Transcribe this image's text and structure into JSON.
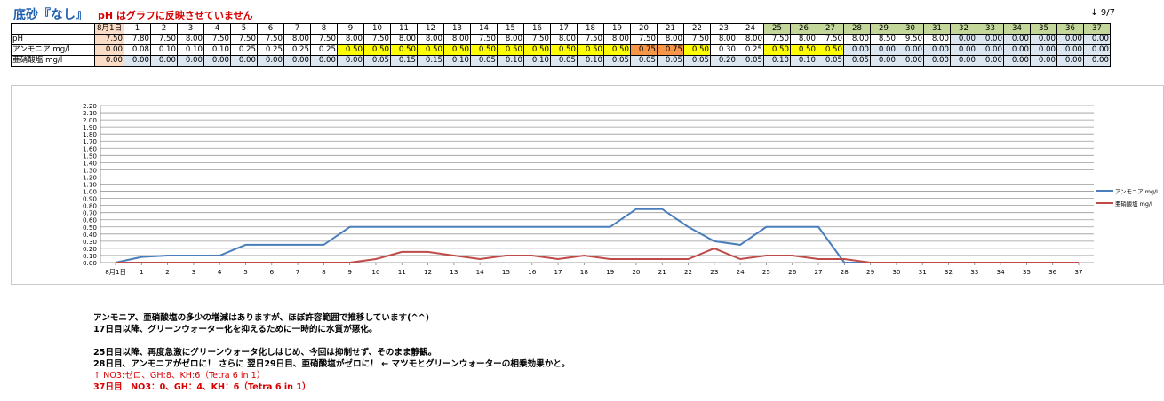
{
  "header": {
    "title": "底砂『なし』",
    "subtitle": "pH はグラフに反映させていません",
    "date": "↓ 9/7"
  },
  "table": {
    "columns": [
      "8月1日",
      "1",
      "2",
      "3",
      "4",
      "5",
      "6",
      "7",
      "8",
      "9",
      "10",
      "11",
      "12",
      "13",
      "14",
      "15",
      "16",
      "17",
      "18",
      "19",
      "20",
      "21",
      "22",
      "23",
      "24",
      "25",
      "26",
      "27",
      "28",
      "29",
      "30",
      "31",
      "32",
      "33",
      "34",
      "35",
      "36",
      "37"
    ],
    "rows": [
      {
        "label": "pH",
        "values": [
          "7.50",
          "7.80",
          "7.50",
          "8.00",
          "7.50",
          "7.50",
          "7.50",
          "8.00",
          "7.50",
          "8.00",
          "7.50",
          "8.00",
          "8.00",
          "8.00",
          "7.50",
          "8.00",
          "7.50",
          "8.00",
          "7.50",
          "8.00",
          "7.50",
          "8.00",
          "7.50",
          "8.00",
          "8.00",
          "7.50",
          "8.00",
          "7.50",
          "8.00",
          "8.50",
          "9.50",
          "8.00",
          "0.00",
          "0.00",
          "0.00",
          "0.00",
          "0.00",
          "0.00"
        ]
      },
      {
        "label": "アンモニア mg/l",
        "values": [
          "0.00",
          "0.08",
          "0.10",
          "0.10",
          "0.10",
          "0.25",
          "0.25",
          "0.25",
          "0.25",
          "0.50",
          "0.50",
          "0.50",
          "0.50",
          "0.50",
          "0.50",
          "0.50",
          "0.50",
          "0.50",
          "0.50",
          "0.50",
          "0.75",
          "0.75",
          "0.50",
          "0.30",
          "0.25",
          "0.50",
          "0.50",
          "0.50",
          "0.00",
          "0.00",
          "0.00",
          "0.00",
          "0.00",
          "0.00",
          "0.00",
          "0.00",
          "0.00",
          "0.00"
        ]
      },
      {
        "label": "亜硝酸塩 mg/l",
        "values": [
          "0.00",
          "0.00",
          "0.00",
          "0.00",
          "0.00",
          "0.00",
          "0.00",
          "0.00",
          "0.00",
          "0.00",
          "0.05",
          "0.15",
          "0.15",
          "0.10",
          "0.05",
          "0.10",
          "0.10",
          "0.05",
          "0.10",
          "0.05",
          "0.05",
          "0.05",
          "0.05",
          "0.20",
          "0.05",
          "0.10",
          "0.10",
          "0.05",
          "0.05",
          "0.00",
          "0.00",
          "0.00",
          "0.00",
          "0.00",
          "0.00",
          "0.00",
          "0.00",
          "0.00"
        ]
      }
    ],
    "colors": {
      "first_col": "#fbdcc7",
      "header_green": "#c4d79b",
      "yellow": "#ffff00",
      "orange": "#f79646",
      "lightblue": "#dce6f1"
    }
  },
  "chart_data": {
    "type": "line",
    "categories": [
      "8月1日",
      "1",
      "2",
      "3",
      "4",
      "5",
      "6",
      "7",
      "8",
      "9",
      "10",
      "11",
      "12",
      "13",
      "14",
      "15",
      "16",
      "17",
      "18",
      "19",
      "20",
      "21",
      "22",
      "23",
      "24",
      "25",
      "26",
      "27",
      "28",
      "29",
      "30",
      "31",
      "32",
      "33",
      "34",
      "35",
      "36",
      "37"
    ],
    "series": [
      {
        "name": "アンモニア mg/l",
        "color": "#4a7ebb",
        "values": [
          0,
          0.08,
          0.1,
          0.1,
          0.1,
          0.25,
          0.25,
          0.25,
          0.25,
          0.5,
          0.5,
          0.5,
          0.5,
          0.5,
          0.5,
          0.5,
          0.5,
          0.5,
          0.5,
          0.5,
          0.75,
          0.75,
          0.5,
          0.3,
          0.25,
          0.5,
          0.5,
          0.5,
          0,
          0,
          0,
          0,
          0,
          0,
          0,
          0,
          0,
          0
        ]
      },
      {
        "name": "亜硝酸塩 mg/l",
        "color": "#be4b48",
        "values": [
          0,
          0,
          0,
          0,
          0,
          0,
          0,
          0,
          0,
          0,
          0.05,
          0.15,
          0.15,
          0.1,
          0.05,
          0.1,
          0.1,
          0.05,
          0.1,
          0.05,
          0.05,
          0.05,
          0.05,
          0.2,
          0.05,
          0.1,
          0.1,
          0.05,
          0.05,
          0,
          0,
          0,
          0,
          0,
          0,
          0,
          0,
          0
        ]
      }
    ],
    "yticks": [
      "0.00",
      "0.10",
      "0.20",
      "0.30",
      "0.40",
      "0.50",
      "0.60",
      "0.70",
      "0.80",
      "0.90",
      "1.00",
      "1.10",
      "1.20",
      "1.30",
      "1.40",
      "1.50",
      "1.60",
      "1.70",
      "1.80",
      "1.90",
      "2.00",
      "2.10",
      "2.20"
    ],
    "ylim": [
      0,
      2.2
    ],
    "grid": true,
    "legend": "right"
  },
  "notes": [
    {
      "text": "アンモニア、亜硝酸塩の多少の増減はありますが、ほぼ許容範囲で推移しています(^^)",
      "style": "normal"
    },
    {
      "text": "17日目以降、グリーンウォーター化を抑えるために一時的に水質が悪化。",
      "style": "normal"
    },
    {
      "text": "",
      "style": "spacer"
    },
    {
      "text": "25日目以降、再度急激にグリーンウォータ化しはじめ、今回は抑制せず、そのまま静観。",
      "style": "normal"
    },
    {
      "text": "28日目、アンモニアがゼロに！ さらに 翌日29日目、亜硝酸塩がゼロに！ ← マツモとグリーンウォーターの相乗効果かと。",
      "style": "normal"
    },
    {
      "text": "↑ NO3:ゼロ、GH:8、KH:6（Tetra 6 in 1）",
      "style": "red-thin"
    },
    {
      "text": "37日目　NO3：0、GH：4、KH：6（Tetra 6 in 1）",
      "style": "red"
    }
  ]
}
